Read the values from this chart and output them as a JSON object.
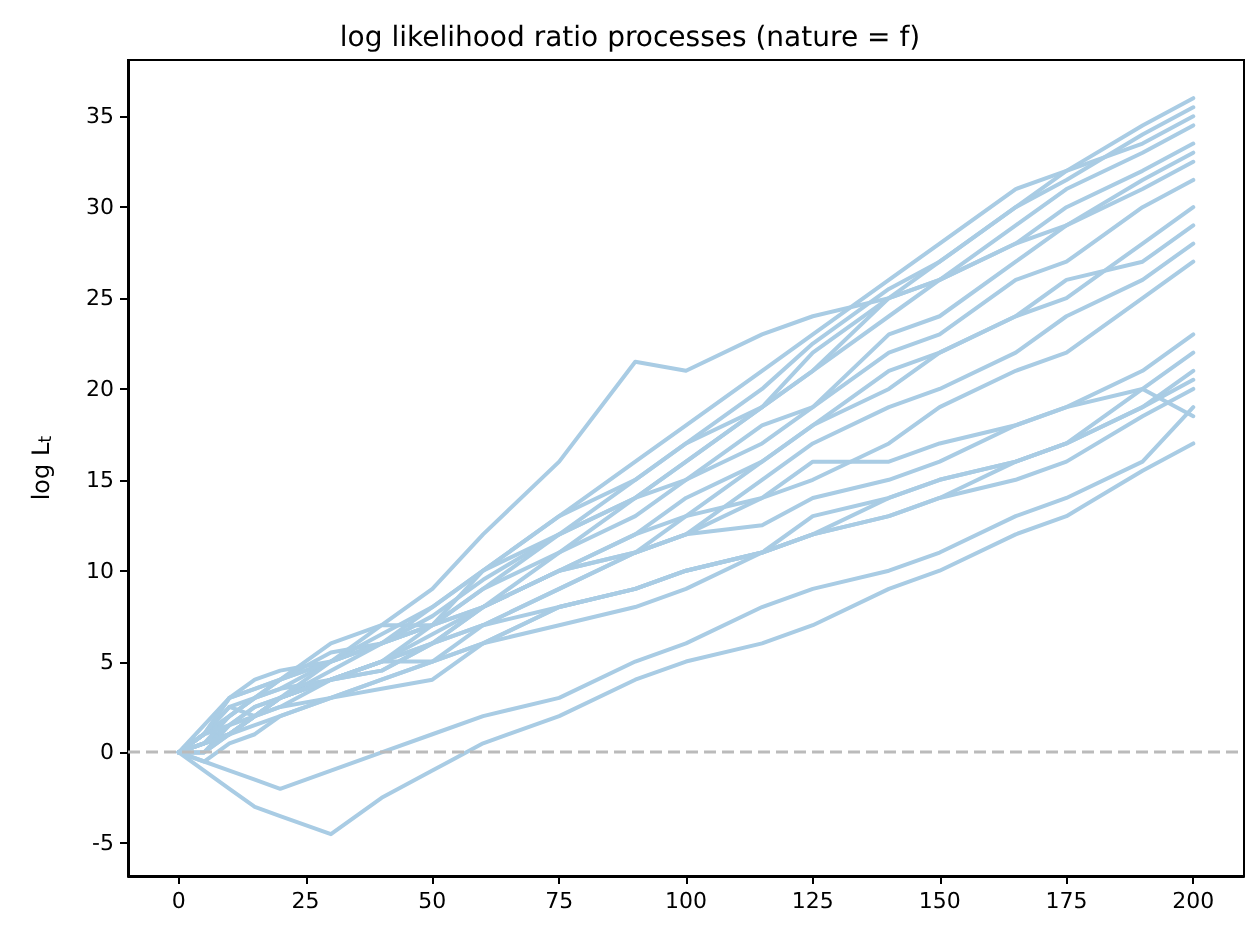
{
  "chart_data": {
    "type": "line",
    "title": "log likelihood ratio processes (nature = f)",
    "ylabel": "log L$_{t}$",
    "x": [
      0,
      5,
      10,
      15,
      20,
      30,
      40,
      50,
      60,
      75,
      90,
      100,
      115,
      125,
      140,
      150,
      165,
      175,
      190,
      200
    ],
    "xlim": [
      -10,
      210
    ],
    "xticks": [
      0,
      25,
      50,
      75,
      100,
      125,
      150,
      175,
      200
    ],
    "ylim": [
      -6.8,
      38.1
    ],
    "yticks": [
      -5,
      0,
      5,
      10,
      15,
      20,
      25,
      30,
      35
    ],
    "grid": false,
    "marker": "none",
    "line_style": "solid",
    "ref_lines": [
      {
        "axis": "y",
        "value": 0,
        "color": "#bbbbbb",
        "line_style": "dashed"
      }
    ],
    "series": [
      {
        "color": "#a9cce4",
        "values": [
          0,
          1,
          2,
          3,
          3.5,
          5,
          6.5,
          8,
          10,
          13,
          16,
          18,
          21,
          23,
          26,
          28,
          31,
          32,
          34.5,
          36
        ]
      },
      {
        "color": "#a9cce4",
        "values": [
          0,
          0.5,
          1.5,
          2.5,
          3,
          4.5,
          6,
          7.5,
          9.5,
          12,
          15,
          17,
          20,
          22.5,
          25.5,
          27,
          30,
          31.5,
          34,
          35.5
        ]
      },
      {
        "color": "#a9cce4",
        "values": [
          0,
          1.5,
          3,
          3.5,
          4,
          6,
          7,
          9,
          12,
          16,
          21.5,
          21,
          23,
          24,
          25,
          26,
          28,
          29,
          31.5,
          33
        ]
      },
      {
        "color": "#a9cce4",
        "values": [
          0,
          1,
          2.5,
          2,
          3,
          5,
          7,
          7,
          10,
          13,
          15,
          17,
          19,
          21,
          25,
          26,
          29,
          31,
          33,
          34.5
        ]
      },
      {
        "color": "#a9cce4",
        "values": [
          0,
          0.5,
          1,
          2,
          3,
          4,
          5,
          6,
          8,
          11,
          14,
          16,
          19,
          21,
          24,
          26,
          28,
          30,
          32,
          33.5
        ]
      },
      {
        "color": "#a9cce4",
        "values": [
          0,
          1,
          2,
          3,
          4,
          5.5,
          6,
          8,
          10,
          12,
          14,
          15,
          18,
          19,
          23,
          24,
          27,
          29,
          31,
          32.5
        ]
      },
      {
        "color": "#a9cce4",
        "values": [
          0,
          0,
          1,
          2,
          2.5,
          4,
          5,
          7,
          9,
          11,
          13,
          15,
          17,
          19,
          22,
          23,
          26,
          27,
          30,
          31.5
        ]
      },
      {
        "color": "#a9cce4",
        "values": [
          0,
          1,
          2.5,
          3,
          4,
          5,
          6,
          7,
          8,
          10,
          12,
          14,
          16,
          18,
          21,
          22,
          24,
          25,
          28,
          30
        ]
      },
      {
        "color": "#a9cce4",
        "values": [
          0,
          0.5,
          1,
          2,
          3,
          4,
          5,
          6,
          8,
          10,
          11,
          12,
          15,
          17,
          19,
          20,
          22,
          24,
          26,
          28
        ]
      },
      {
        "color": "#a9cce4",
        "values": [
          0,
          0,
          1.5,
          2.5,
          3,
          4,
          4.5,
          6,
          7,
          9,
          11,
          12,
          14,
          15,
          17,
          19,
          21,
          22,
          25,
          27
        ]
      },
      {
        "color": "#a9cce4",
        "values": [
          0,
          0.5,
          1,
          2,
          3,
          4,
          5,
          5,
          7,
          9,
          11,
          12,
          12.5,
          14,
          15,
          16,
          18,
          19,
          21,
          23
        ]
      },
      {
        "color": "#a9cce4",
        "values": [
          0,
          1,
          3,
          3.5,
          4,
          5,
          6,
          7,
          8,
          10,
          11,
          13,
          14,
          16,
          16,
          17,
          18,
          19,
          20,
          22
        ]
      },
      {
        "color": "#a9cce4",
        "values": [
          0,
          0.5,
          2,
          3,
          3.5,
          4,
          4.5,
          6,
          7,
          8,
          9,
          10,
          11,
          12,
          13,
          14,
          16,
          17,
          19,
          21
        ]
      },
      {
        "color": "#a9cce4",
        "values": [
          0,
          -0.5,
          0.5,
          1,
          2,
          3,
          4,
          5,
          6,
          8,
          9,
          10,
          11,
          12,
          14,
          15,
          16,
          17,
          19,
          20.5
        ]
      },
      {
        "color": "#a9cce4",
        "values": [
          0,
          1,
          1.5,
          2,
          2.5,
          3,
          3.5,
          4,
          6,
          7,
          8,
          9,
          11,
          12,
          13,
          14,
          15,
          16,
          18.5,
          20
        ]
      },
      {
        "color": "#a9cce4",
        "values": [
          0,
          0,
          1,
          1.5,
          2,
          3,
          4,
          5,
          6,
          8,
          9,
          10,
          11,
          13,
          14,
          15,
          16,
          17,
          20,
          18.5
        ]
      },
      {
        "color": "#a9cce4",
        "values": [
          0,
          -1,
          -2,
          -3,
          -3.5,
          -4.5,
          -2.5,
          -1,
          0.5,
          2,
          4,
          5,
          6,
          7,
          9,
          10,
          12,
          13,
          15.5,
          17
        ]
      },
      {
        "color": "#a9cce4",
        "values": [
          0,
          -0.5,
          -1,
          -1.5,
          -2,
          -1,
          0,
          1,
          2,
          3,
          5,
          6,
          8,
          9,
          10,
          11,
          13,
          14,
          16,
          19
        ]
      },
      {
        "color": "#a9cce4",
        "values": [
          0,
          1,
          3,
          4,
          4.5,
          5,
          6,
          7,
          9,
          12,
          14,
          16,
          19,
          22,
          25,
          27,
          30,
          32,
          33.5,
          35
        ]
      },
      {
        "color": "#a9cce4",
        "values": [
          0,
          0.5,
          1,
          2,
          3,
          4,
          5,
          6.5,
          8,
          10,
          12,
          13,
          16,
          18,
          20,
          22,
          24,
          26,
          27,
          29
        ]
      }
    ]
  }
}
